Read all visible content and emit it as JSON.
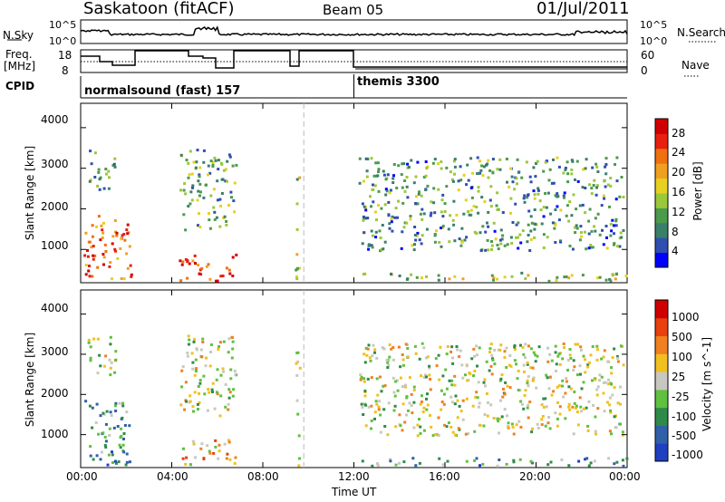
{
  "header": {
    "station": "Saskatoon (fitACF)",
    "beam": "Beam 05",
    "date": "01/Jul/2011"
  },
  "noise_panel": {
    "left_label": "N.Sky",
    "right_label": "N.Search",
    "left_ticks": [
      "10^5",
      "10^0"
    ],
    "right_ticks": [
      "10^5",
      "10^0"
    ]
  },
  "freq_panel": {
    "left_label_1": "Freq.",
    "left_label_2": "[MHz]",
    "right_label": "Nave",
    "left_ticks": [
      "18",
      "8"
    ],
    "right_ticks": [
      "60",
      "0"
    ]
  },
  "cpid": {
    "label": "CPID",
    "segments": [
      {
        "name": "normalsound (fast) 157",
        "start_hour": 0
      },
      {
        "name": "themis 3300",
        "start_hour": 12
      }
    ]
  },
  "x_axis": {
    "label": "Time UT",
    "ticks": [
      "00:00",
      "04:00",
      "08:00",
      "12:00",
      "16:00",
      "20:00",
      "00:00"
    ],
    "range_hours": [
      0,
      24
    ]
  },
  "colors": {
    "power": [
      "#0000ff",
      "#2f4fb0",
      "#3a7f6a",
      "#4c9a4c",
      "#9ac83a",
      "#e6d020",
      "#f0a020",
      "#f07010",
      "#e82010",
      "#d00000"
    ],
    "velocity": [
      "#2040c0",
      "#3060a8",
      "#2f8a4a",
      "#60c040",
      "#c8c8c0",
      "#f0c020",
      "#f08020",
      "#e84010",
      "#d00000"
    ]
  },
  "chart_data": [
    {
      "type": "heatmap",
      "parameter": "Power",
      "ylabel": "Slant Range [km]",
      "ylim": [
        180,
        4600
      ],
      "yticks": [
        1000,
        2000,
        3000,
        4000
      ],
      "colorbar": {
        "label": "Power [dB]",
        "ticks": [
          "28",
          "24",
          "20",
          "16",
          "12",
          "8",
          "4"
        ],
        "range": [
          0,
          30
        ]
      },
      "scatter_regions": [
        {
          "t0": 0.1,
          "t1": 2.2,
          "r0": 250,
          "r1": 1900,
          "level": 0.75
        },
        {
          "t0": 0.3,
          "t1": 1.5,
          "r0": 2500,
          "r1": 3500,
          "level": 0.3
        },
        {
          "t0": 4.3,
          "t1": 6.8,
          "r0": 250,
          "r1": 900,
          "level": 0.85
        },
        {
          "t0": 4.3,
          "t1": 6.8,
          "r0": 1500,
          "r1": 3500,
          "level": 0.35
        },
        {
          "t0": 9.4,
          "t1": 9.6,
          "r0": 250,
          "r1": 3300,
          "level": 0.4
        },
        {
          "t0": 12.0,
          "t1": 24.0,
          "r0": 250,
          "r1": 450,
          "level": 0.45
        },
        {
          "t0": 12.2,
          "t1": 23.8,
          "r0": 1000,
          "r1": 3300,
          "level": 0.3
        }
      ]
    },
    {
      "type": "heatmap",
      "parameter": "Velocity",
      "ylabel": "Slant Range [km]",
      "ylim": [
        180,
        4600
      ],
      "yticks": [
        1000,
        2000,
        3000,
        4000
      ],
      "colorbar": {
        "label": "Velocity [m s^-1]",
        "ticks": [
          "1000",
          "500",
          "100",
          "25",
          "-25",
          "-100",
          "-500",
          "-1000"
        ],
        "range": [
          -1000,
          1000
        ]
      },
      "scatter_regions": [
        {
          "t0": 0.1,
          "t1": 2.2,
          "r0": 250,
          "r1": 1900,
          "level": 0.3
        },
        {
          "t0": 0.3,
          "t1": 1.5,
          "r0": 2500,
          "r1": 3500,
          "level": 0.5
        },
        {
          "t0": 4.3,
          "t1": 6.8,
          "r0": 250,
          "r1": 900,
          "level": 0.6
        },
        {
          "t0": 4.3,
          "t1": 6.8,
          "r0": 1500,
          "r1": 3500,
          "level": 0.5
        },
        {
          "t0": 9.4,
          "t1": 9.6,
          "r0": 250,
          "r1": 3300,
          "level": 0.5
        },
        {
          "t0": 12.0,
          "t1": 24.0,
          "r0": 250,
          "r1": 450,
          "level": 0.3
        },
        {
          "t0": 12.2,
          "t1": 23.8,
          "r0": 1000,
          "r1": 3300,
          "level": 0.5
        }
      ]
    }
  ]
}
